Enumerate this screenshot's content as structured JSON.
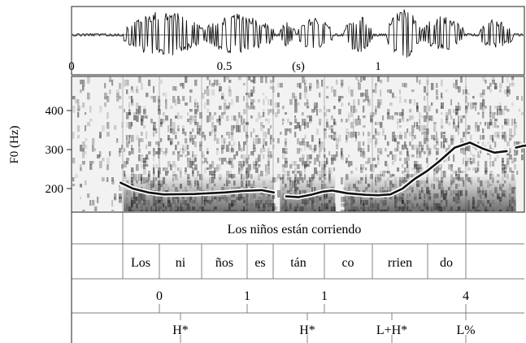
{
  "waveform": {
    "time_ticks": [
      "0",
      "0.5",
      "(s)",
      "1"
    ]
  },
  "spectrogram": {
    "y_label": "F0 (Hz)",
    "y_ticks": [
      "400",
      "300",
      "200"
    ]
  },
  "chart_data": {
    "type": "line",
    "title": "",
    "xlabel": "(s)",
    "ylabel": "F0 (Hz)",
    "xlim": [
      0,
      1.55
    ],
    "ylim": [
      130,
      480
    ],
    "series": [
      {
        "points": [
          [
            0.16,
            215
          ],
          [
            0.2,
            200
          ],
          [
            0.25,
            190
          ],
          [
            0.3,
            185
          ],
          [
            0.4,
            186
          ],
          [
            0.5,
            190
          ],
          [
            0.56,
            194
          ],
          [
            0.62,
            196
          ],
          [
            0.66,
            190
          ],
          [
            0.7,
            180
          ],
          [
            0.74,
            178
          ],
          [
            0.78,
            184
          ],
          [
            0.82,
            192
          ],
          [
            0.85,
            195
          ],
          [
            0.9,
            188
          ],
          [
            0.96,
            184
          ],
          [
            1.0,
            183
          ],
          [
            1.04,
            185
          ],
          [
            1.08,
            200
          ],
          [
            1.12,
            225
          ],
          [
            1.16,
            245
          ],
          [
            1.2,
            270
          ],
          [
            1.25,
            305
          ],
          [
            1.3,
            318
          ],
          [
            1.34,
            303
          ],
          [
            1.38,
            292
          ],
          [
            1.42,
            296
          ],
          [
            1.45,
            305
          ],
          [
            1.47,
            309
          ],
          [
            1.5,
            312
          ],
          [
            1.54,
            312
          ]
        ]
      }
    ]
  },
  "tiers": {
    "sentence": "Los niños están corriendo",
    "syllables": [
      "Los",
      "ni",
      "ños",
      "es",
      "tán",
      "co",
      "rrien",
      "do"
    ],
    "break_indices": [
      "0",
      "1",
      "1",
      "4"
    ],
    "tones": [
      "H*",
      "H*",
      "L+H*",
      "L%"
    ]
  },
  "colors": {
    "ink": "#111111",
    "grid": "#888888"
  }
}
